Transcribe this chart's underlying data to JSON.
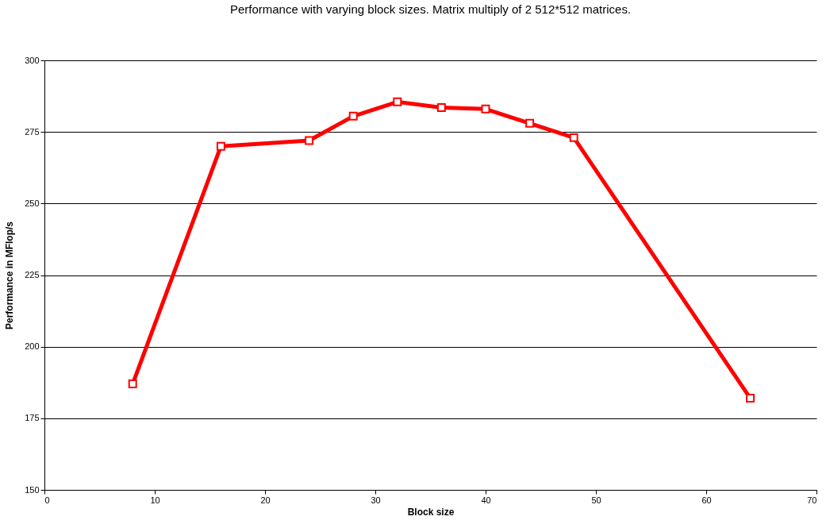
{
  "chart_data": {
    "type": "line",
    "title": "Performance with varying block sizes. Matrix multiply of 2 512*512 matrices.",
    "xlabel": "Block size",
    "ylabel": "Performance in MFlop/s",
    "x": [
      8,
      16,
      24,
      28,
      32,
      36,
      40,
      44,
      48,
      64
    ],
    "series": [
      {
        "color": "#ff0000",
        "values": [
          187,
          270,
          272,
          280.5,
          285.5,
          283.5,
          283,
          278,
          273,
          182
        ]
      }
    ],
    "xlim": [
      0,
      70
    ],
    "xticks": [
      0,
      10,
      20,
      30,
      40,
      50,
      60,
      70
    ],
    "ylim": [
      150,
      300
    ],
    "yticks": [
      150,
      175,
      200,
      225,
      250,
      275,
      300
    ],
    "grid": "y",
    "marker": "square",
    "line_style": "solid"
  }
}
